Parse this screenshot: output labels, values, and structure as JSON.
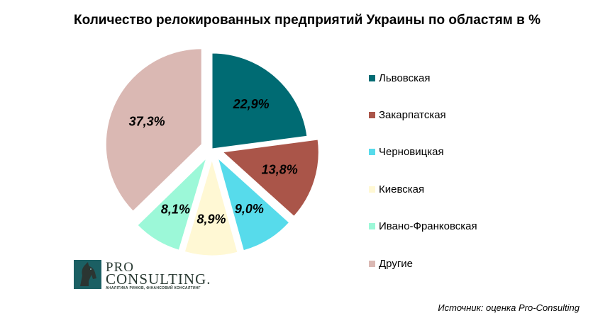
{
  "chart_data": {
    "type": "pie",
    "title": "Количество релокированных предприятий Украины по областям в %",
    "slices": [
      {
        "name": "Львовская",
        "value": 22.9,
        "label": "22,9%",
        "color": "#006b73",
        "exploded": false
      },
      {
        "name": "Закарпатская",
        "value": 13.8,
        "label": "13,8%",
        "color": "#aa5549",
        "exploded": true
      },
      {
        "name": "Черновицкая",
        "value": 9.0,
        "label": "9,0%",
        "color": "#57dbeb",
        "exploded": true
      },
      {
        "name": "Киевская",
        "value": 8.9,
        "label": "8,9%",
        "color": "#fff8d4",
        "exploded": true
      },
      {
        "name": "Ивано-Франковская",
        "value": 8.1,
        "label": "8,1%",
        "color": "#9cf8d8",
        "exploded": true
      },
      {
        "name": "Другие",
        "value": 37.3,
        "label": "37,3%",
        "color": "#dab8b3",
        "exploded": true
      }
    ],
    "legend_position": "right"
  },
  "logo": {
    "pro": "PRO",
    "consulting": "CONSULTING.",
    "tagline": "АНАЛІТИКА РИНКІВ, ФІНАНСОВИЙ КОНСАЛТИНГ"
  },
  "source_note": "Источник: оценка Pro-Consulting"
}
